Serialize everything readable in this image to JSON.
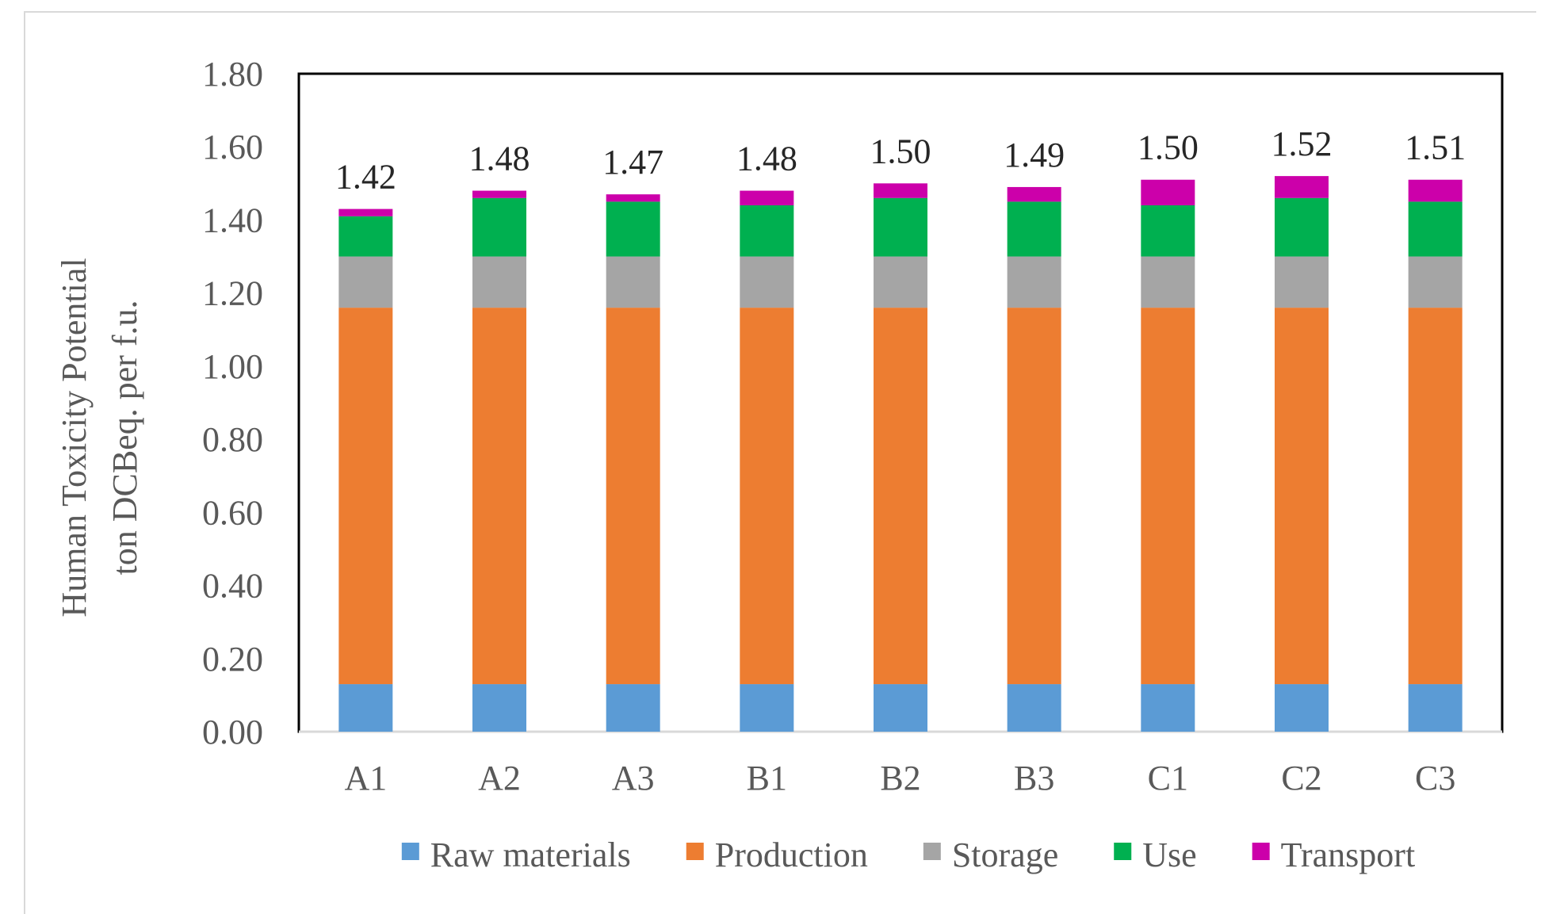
{
  "chart_data": {
    "type": "bar",
    "stacked": true,
    "categories": [
      "A1",
      "A2",
      "A3",
      "B1",
      "B2",
      "B3",
      "C1",
      "C2",
      "C3"
    ],
    "series": [
      {
        "name": "Raw materials",
        "color": "#5b9bd5",
        "values": [
          0.13,
          0.13,
          0.13,
          0.13,
          0.13,
          0.13,
          0.13,
          0.13,
          0.13
        ]
      },
      {
        "name": "Production",
        "color": "#ed7d31",
        "values": [
          1.03,
          1.03,
          1.03,
          1.03,
          1.03,
          1.03,
          1.03,
          1.03,
          1.03
        ]
      },
      {
        "name": "Storage",
        "color": "#a5a5a5",
        "values": [
          0.14,
          0.14,
          0.14,
          0.14,
          0.14,
          0.14,
          0.14,
          0.14,
          0.14
        ]
      },
      {
        "name": "Use",
        "color": "#00b050",
        "values": [
          0.11,
          0.16,
          0.15,
          0.14,
          0.16,
          0.15,
          0.14,
          0.16,
          0.15
        ]
      },
      {
        "name": "Transport",
        "color": "#cc00aa",
        "values": [
          0.02,
          0.02,
          0.02,
          0.04,
          0.04,
          0.04,
          0.07,
          0.06,
          0.06
        ]
      }
    ],
    "totals": [
      "1.42",
      "1.48",
      "1.47",
      "1.48",
      "1.50",
      "1.49",
      "1.50",
      "1.52",
      "1.51"
    ],
    "y_ticks": [
      "0.00",
      "0.20",
      "0.40",
      "0.60",
      "0.80",
      "1.00",
      "1.20",
      "1.40",
      "1.60",
      "1.80"
    ],
    "ylim": [
      0,
      1.8
    ],
    "ylabel_line1": "Human Toxicity Potential",
    "ylabel_line2": "ton DCBeq. per f.u.",
    "xlabel": "",
    "legend_position": "bottom",
    "grid": false
  }
}
